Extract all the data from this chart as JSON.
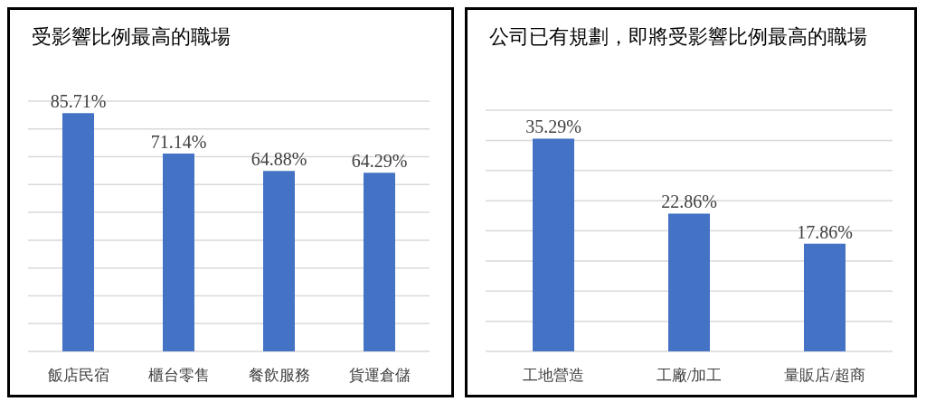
{
  "chart_data": [
    {
      "type": "bar",
      "title": "受影響比例最高的職場",
      "categories": [
        "飯店民宿",
        "櫃台零售",
        "餐飲服務",
        "貨運倉儲"
      ],
      "values": [
        85.71,
        71.14,
        64.88,
        64.29
      ],
      "value_labels": [
        "85.71%",
        "71.14%",
        "64.88%",
        "64.29%"
      ],
      "color": "#4472c4",
      "ylim": [
        0,
        90
      ],
      "yticks": [
        {
          "value": 0,
          "label": null
        },
        {
          "value": 10,
          "label": null
        },
        {
          "value": 20,
          "label": null
        },
        {
          "value": 30,
          "label": null
        },
        {
          "value": 40,
          "label": null
        },
        {
          "value": 50,
          "label": null
        },
        {
          "value": 60,
          "label": null
        },
        {
          "value": 70,
          "label": null
        },
        {
          "value": 80,
          "label": null
        },
        {
          "value": 90,
          "label": null
        }
      ],
      "grid": "y",
      "tick_labels": "x"
    },
    {
      "type": "bar",
      "title": "公司已有規劃，即將受影響比例最高的職場",
      "categories": [
        "工地營造",
        "工廠/加工",
        "量販店/超商"
      ],
      "values": [
        35.29,
        22.86,
        17.86
      ],
      "value_labels": [
        "35.29%",
        "22.86%",
        "17.86%"
      ],
      "color": "#4472c4",
      "ylim": [
        0,
        40
      ],
      "yticks": [
        {
          "value": 0,
          "label": null
        },
        {
          "value": 5,
          "label": null
        },
        {
          "value": 10,
          "label": null
        },
        {
          "value": 15,
          "label": null
        },
        {
          "value": 20,
          "label": null
        },
        {
          "value": 25,
          "label": null
        },
        {
          "value": 30,
          "label": null
        },
        {
          "value": 35,
          "label": null
        },
        {
          "value": 40,
          "label": null
        }
      ],
      "grid": "y",
      "tick_labels": "x"
    }
  ]
}
